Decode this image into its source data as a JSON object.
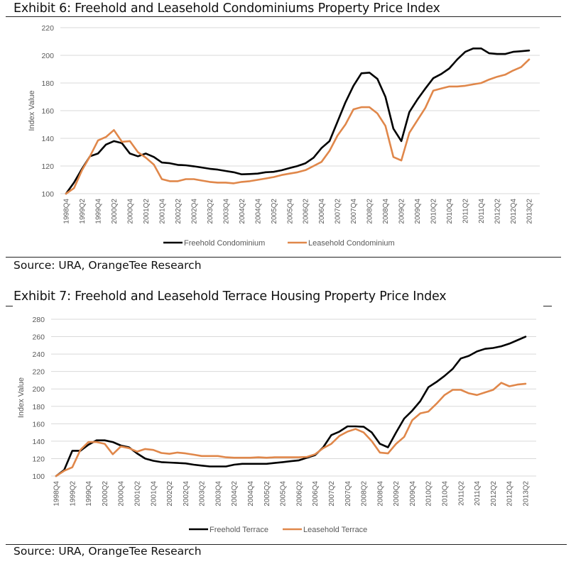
{
  "exhibits": [
    {
      "title": "Exhibit 6: Freehold and Leasehold Condominiums Property Price Index",
      "source": "Source: URA, OrangeTee Research"
    },
    {
      "title": "Exhibit 7: Freehold and Leasehold Terrace Housing Property Price Index",
      "source": "Source: URA, OrangeTee Research"
    }
  ],
  "colors": {
    "freehold": "#000000",
    "leasehold": "#E0874A",
    "grid": "#D9D9D9"
  },
  "chart_data": [
    {
      "type": "line",
      "title": "Exhibit 6: Freehold and Leasehold Condominiums Property Price Index",
      "xlabel": "",
      "ylabel": "Index Value",
      "ylim": [
        100,
        220
      ],
      "yticks": [
        100,
        120,
        140,
        160,
        180,
        200,
        220
      ],
      "grid": true,
      "legend": "bottom",
      "x": [
        "1998Q4",
        "1999Q1",
        "1999Q2",
        "1999Q3",
        "1999Q4",
        "2000Q1",
        "2000Q2",
        "2000Q3",
        "2000Q4",
        "2001Q1",
        "2001Q2",
        "2001Q3",
        "2001Q4",
        "2002Q1",
        "2002Q2",
        "2002Q3",
        "2002Q4",
        "2003Q1",
        "2003Q2",
        "2003Q3",
        "2003Q4",
        "2004Q1",
        "2004Q2",
        "2004Q3",
        "2004Q4",
        "2005Q1",
        "2005Q2",
        "2005Q3",
        "2005Q4",
        "2006Q1",
        "2006Q2",
        "2006Q3",
        "2006Q4",
        "2007Q1",
        "2007Q2",
        "2007Q3",
        "2007Q4",
        "2008Q1",
        "2008Q2",
        "2008Q3",
        "2008Q4",
        "2009Q1",
        "2009Q2",
        "2009Q3",
        "2009Q4",
        "2010Q1",
        "2010Q2",
        "2010Q3",
        "2010Q4",
        "2011Q1",
        "2011Q2",
        "2011Q3",
        "2011Q4",
        "2012Q1",
        "2012Q2",
        "2012Q3",
        "2012Q4",
        "2013Q1",
        "2013Q2"
      ],
      "xtick_labels": [
        "1998Q4",
        "1999Q2",
        "1999Q4",
        "2000Q2",
        "2000Q4",
        "2001Q2",
        "2001Q4",
        "2002Q2",
        "2002Q4",
        "2003Q2",
        "2003Q4",
        "2004Q2",
        "2004Q4",
        "2005Q2",
        "2005Q4",
        "2006Q2",
        "2006Q4",
        "2007Q2",
        "2007Q4",
        "2008Q2",
        "2008Q4",
        "2009Q2",
        "2009Q4",
        "2010Q2",
        "2010Q4",
        "2011Q2",
        "2011Q4",
        "2012Q2",
        "2012Q4",
        "2013Q2"
      ],
      "series": [
        {
          "name": "Freehold Condominium",
          "color": "#000000",
          "values": [
            100,
            108,
            118,
            127,
            129,
            135.5,
            138,
            136.5,
            129,
            127,
            129,
            126.5,
            122.5,
            122,
            120.8,
            120.5,
            119.8,
            118.9,
            118,
            117.4,
            116.4,
            115.5,
            114,
            114.2,
            114.5,
            115.5,
            115.8,
            116.9,
            118.5,
            120,
            122,
            126,
            133,
            138,
            152,
            166,
            178,
            187,
            187.5,
            183,
            170,
            147,
            138,
            159,
            168,
            176,
            183.5,
            186.5,
            190.5,
            197,
            202.5,
            205,
            205,
            201.5,
            201,
            201,
            202.5,
            203,
            203.5
          ]
        },
        {
          "name": "Leasehold Condominium",
          "color": "#E0874A",
          "values": [
            100,
            104,
            117,
            127,
            138.5,
            141,
            146,
            137.5,
            138,
            130,
            126,
            121,
            110.5,
            109,
            109,
            110.5,
            110.5,
            109.5,
            108.5,
            108,
            108,
            107.5,
            108.5,
            109,
            110,
            111,
            112,
            113.5,
            114.5,
            115.5,
            117,
            120,
            123,
            131,
            142,
            150,
            161,
            162.5,
            162.5,
            158,
            149,
            126.5,
            124,
            144,
            153,
            162,
            174.5,
            176,
            177.5,
            177.5,
            178,
            179,
            180,
            182.5,
            184.5,
            186,
            189,
            191.5,
            197
          ]
        }
      ]
    },
    {
      "type": "line",
      "title": "Exhibit 7: Freehold and Leasehold Terrace Housing Property Price Index",
      "xlabel": "",
      "ylabel": "Index Value",
      "ylim": [
        100,
        280
      ],
      "yticks": [
        100,
        120,
        140,
        160,
        180,
        200,
        220,
        240,
        260,
        280
      ],
      "grid": true,
      "legend": "bottom",
      "x": [
        "1998Q4",
        "1999Q1",
        "1999Q2",
        "1999Q3",
        "1999Q4",
        "2000Q1",
        "2000Q2",
        "2000Q3",
        "2000Q4",
        "2001Q1",
        "2001Q2",
        "2001Q3",
        "2001Q4",
        "2002Q1",
        "2002Q2",
        "2002Q3",
        "2002Q4",
        "2003Q1",
        "2003Q2",
        "2003Q3",
        "2003Q4",
        "2004Q1",
        "2004Q2",
        "2004Q3",
        "2004Q4",
        "2005Q1",
        "2005Q2",
        "2005Q3",
        "2005Q4",
        "2006Q1",
        "2006Q2",
        "2006Q3",
        "2006Q4",
        "2007Q1",
        "2007Q2",
        "2007Q3",
        "2007Q4",
        "2008Q1",
        "2008Q2",
        "2008Q3",
        "2008Q4",
        "2009Q1",
        "2009Q2",
        "2009Q3",
        "2009Q4",
        "2010Q1",
        "2010Q2",
        "2010Q3",
        "2010Q4",
        "2011Q1",
        "2011Q2",
        "2011Q3",
        "2011Q4",
        "2012Q1",
        "2012Q2",
        "2012Q3",
        "2012Q4",
        "2013Q1",
        "2013Q2"
      ],
      "xtick_labels": [
        "1998Q4",
        "1999Q2",
        "1999Q4",
        "2000Q2",
        "2000Q4",
        "2001Q2",
        "2001Q4",
        "2002Q2",
        "2002Q4",
        "2003Q2",
        "2003Q4",
        "2004Q2",
        "2004Q4",
        "2005Q2",
        "2005Q4",
        "2006Q2",
        "2006Q4",
        "2007Q2",
        "2007Q4",
        "2008Q2",
        "2008Q4",
        "2009Q2",
        "2009Q4",
        "2010Q2",
        "2010Q4",
        "2011Q2",
        "2011Q4",
        "2012Q2",
        "2012Q4",
        "2013Q2"
      ],
      "series": [
        {
          "name": "Freehold Terrace",
          "color": "#000000",
          "values": [
            100,
            107,
            129,
            129,
            136,
            141,
            141,
            139,
            135,
            133,
            126,
            120,
            117.5,
            116,
            115.5,
            115,
            114.5,
            113,
            112,
            111,
            111,
            111,
            113,
            114,
            114,
            114,
            114,
            115,
            116,
            117,
            118,
            121,
            124,
            133,
            147,
            151,
            157,
            157,
            156.5,
            150,
            137,
            133,
            150,
            166,
            175,
            186,
            202,
            208,
            215,
            223,
            235,
            238,
            243,
            246,
            247,
            249,
            252,
            256,
            260
          ]
        },
        {
          "name": "Leasehold Terrace",
          "color": "#E0874A",
          "values": [
            100,
            106,
            110,
            130,
            139,
            139,
            137,
            125,
            134,
            132,
            128,
            131,
            130,
            126.5,
            125.5,
            127,
            126,
            124.5,
            123,
            123,
            123,
            121.5,
            121,
            121,
            121,
            121.5,
            121,
            121.5,
            121.5,
            121.5,
            121.5,
            122,
            125,
            132,
            137,
            146,
            151,
            154,
            150,
            140,
            127,
            126,
            137,
            145,
            164,
            172,
            174,
            183,
            193,
            199,
            199,
            195,
            193,
            196,
            199,
            207,
            203,
            205,
            206
          ]
        }
      ]
    }
  ]
}
